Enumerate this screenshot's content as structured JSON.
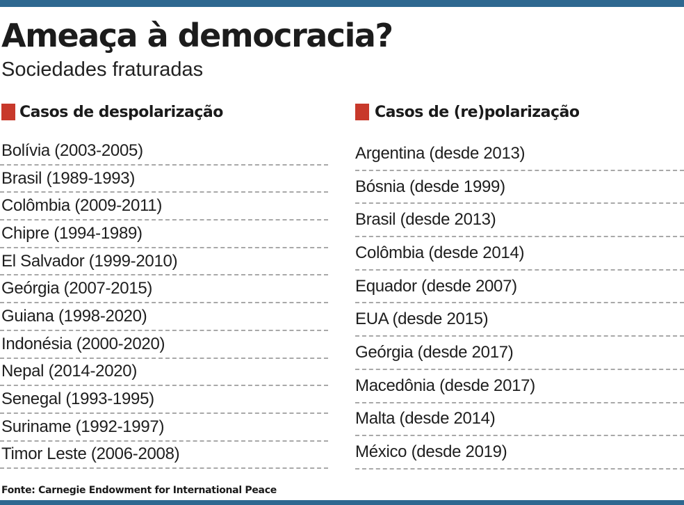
{
  "title": "Ameaça à democracia?",
  "subtitle": "Sociedades fraturadas",
  "colors": {
    "accent_bar": "#2e6890",
    "marker": "#c8392b",
    "divider": "#a8a8a8"
  },
  "left_column": {
    "heading": "Casos de despolarização",
    "items": [
      "Bolívia (2003-2005)",
      "Brasil (1989-1993)",
      "Colômbia (2009-2011)",
      "Chipre (1994-1989)",
      "El Salvador (1999-2010)",
      "Geórgia (2007-2015)",
      "Guiana (1998-2020)",
      "Indonésia (2000-2020)",
      "Nepal (2014-2020)",
      "Senegal (1993-1995)",
      "Suriname (1992-1997)",
      "Timor Leste (2006-2008)"
    ]
  },
  "right_column": {
    "heading": "Casos de (re)polarização",
    "items": [
      "Argentina (desde 2013)",
      "Bósnia (desde 1999)",
      "Brasil (desde 2013)",
      "Colômbia (desde 2014)",
      "Equador (desde 2007)",
      "EUA (desde 2015)",
      "Geórgia (desde 2017)",
      "Macedônia (desde 2017)",
      "Malta (desde 2014)",
      "México (desde 2019)"
    ]
  },
  "source": "Fonte: Carnegie Endowment for International Peace"
}
